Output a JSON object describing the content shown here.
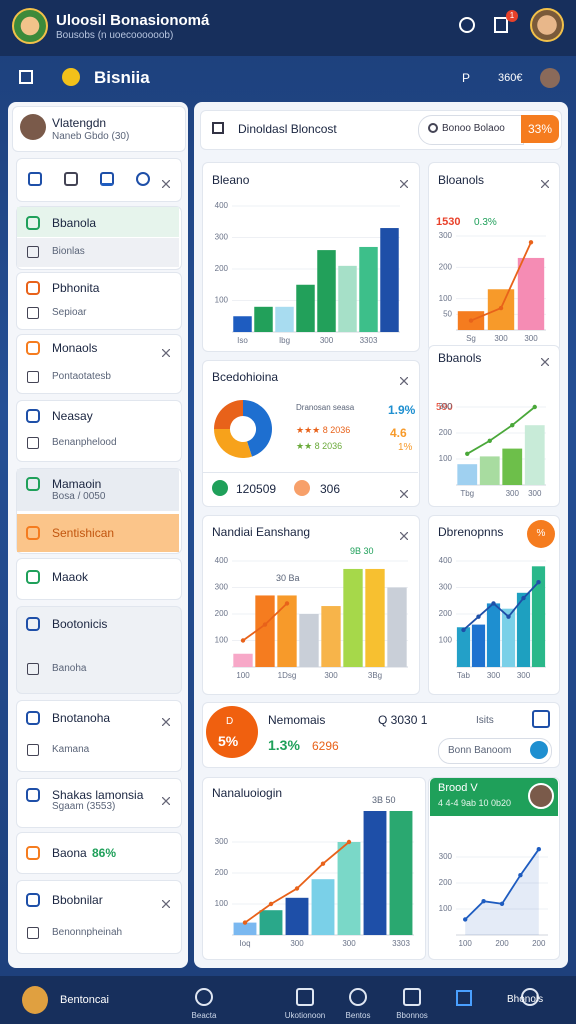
{
  "header": {
    "title": "Uloosil Bonasionomá",
    "subtitle": "Bousobs (n uoecoooooob)",
    "badge": "1"
  },
  "nav": {
    "title": "Bisniia",
    "price_label": "P",
    "price": "360€"
  },
  "profile": {
    "name": "Vlatengdn",
    "meta": "Naneb Gbdo (30)"
  },
  "sidebar": [
    {
      "title": "Bbanola",
      "subtitle": "Bionlas"
    },
    {
      "title": "Pbhonita",
      "subtitle": "Sepioar"
    },
    {
      "title": "Monaols",
      "subtitle": "Pontaotatesb"
    },
    {
      "title": "Neasay",
      "subtitle": "Benanphelood"
    },
    {
      "title": "Mamaoin",
      "subtitle": "Bosa / 0050"
    },
    {
      "title": "Sentishican"
    },
    {
      "title": "Maaok"
    },
    {
      "title": "Bootonicis",
      "subtitle": "Banoha"
    },
    {
      "title": "Bnotanoha",
      "subtitle": "Kamana"
    },
    {
      "title": "Shakas lamonsia",
      "subtitle": "Sgaam (3553)"
    },
    {
      "title": "Baona",
      "subtitle": "86%"
    },
    {
      "title": "Bbobnilar",
      "subtitle": "Benonnpheinah"
    }
  ],
  "search": {
    "title": "Dinoldasl Bloncost",
    "placeholder": "Bonoo Bolaoo",
    "button": "33%"
  },
  "cards": [
    {
      "title": "Bleano",
      "chart": {
        "type": "bar",
        "ylim": [
          0,
          400
        ],
        "yticks": [
          100,
          200,
          300,
          400
        ],
        "categories": [
          "Iso",
          null,
          "Ibg",
          null,
          "300",
          null,
          "3303",
          null
        ],
        "values": [
          50,
          80,
          80,
          150,
          260,
          210,
          270,
          330
        ],
        "colors": [
          "#1e5cc0",
          "#22a05a",
          "#a8dcf0",
          "#22a05a",
          "#22a05a",
          "#a6e0c8",
          "#3dbf8a",
          "#1e4fa8"
        ]
      }
    },
    {
      "title": "Bloanols",
      "value_text": "1530",
      "delta": "0.3%",
      "chart": {
        "type": "bar",
        "ylim": [
          0,
          300
        ],
        "yticks": [
          50,
          100,
          200,
          300
        ],
        "categories": [
          "Sg",
          "300",
          "300"
        ],
        "values": [
          60,
          130,
          230
        ],
        "colors": [
          "#f57c1f",
          "#f79a2a",
          "#f58cb4"
        ],
        "line": [
          30,
          70,
          280
        ],
        "line_color": "#e8621a"
      }
    },
    {
      "title": "Bcedohioina",
      "chart": {
        "type": "pie",
        "values": [
          45,
          30,
          25
        ],
        "colors": [
          "#1e6fd0",
          "#f7a21b",
          "#e8621a"
        ]
      },
      "legend": [
        {
          "text": "Dranosan seasa",
          "value": "1.9%"
        },
        {
          "text": "★★★ 8 2036",
          "value": "4.6"
        },
        {
          "text": "★★ 8 2036",
          "value": "1%"
        }
      ],
      "stat1": "120509",
      "stat2": "306"
    },
    {
      "title": "Bbanols",
      "value_text": "590",
      "chart": {
        "type": "bar",
        "ylim": [
          0,
          400
        ],
        "yticks": [
          100,
          200,
          300
        ],
        "categories": [
          "Tbg",
          null,
          "300",
          "300"
        ],
        "values": [
          80,
          110,
          140,
          230
        ],
        "colors": [
          "#9fd0f0",
          "#a8dca0",
          "#6dbf4a",
          "#c8ebd8"
        ],
        "line": [
          120,
          170,
          230,
          300
        ],
        "line_color": "#4aa83a"
      }
    },
    {
      "title": "Nandiai Eanshang",
      "annotations": [
        "30 Ba",
        "9B 30"
      ],
      "chart": {
        "type": "bar",
        "ylim": [
          0,
          400
        ],
        "yticks": [
          100,
          200,
          300,
          400
        ],
        "categories": [
          "100",
          null,
          "1Dsg",
          null,
          "300",
          null,
          "3Bg",
          null
        ],
        "values": [
          50,
          270,
          270,
          200,
          230,
          370,
          370,
          300
        ],
        "colors": [
          "#f7a8c8",
          "#f57c1f",
          "#f79a2a",
          "#c9cfd8",
          "#f7b44a",
          "#a6d84a",
          "#f7c030",
          "#c9cfd8"
        ],
        "line": [
          100,
          160,
          240,
          null,
          null,
          null,
          null,
          null
        ],
        "line_color": "#e8621a"
      }
    },
    {
      "title": "Dbrenopnns",
      "badge": "%",
      "chart": {
        "type": "bar",
        "ylim": [
          0,
          400
        ],
        "yticks": [
          100,
          200,
          300,
          400
        ],
        "categories": [
          "Tab",
          null,
          "300",
          null,
          "300",
          null
        ],
        "values": [
          150,
          160,
          240,
          220,
          280,
          380
        ],
        "colors": [
          "#23a0c8",
          "#1e72d0",
          "#1e8fd0",
          "#7ad0e8",
          "#1ea0c0",
          "#2ab88a"
        ],
        "line": [
          140,
          190,
          240,
          190,
          260,
          320
        ],
        "line_color": "#1e4fa8"
      }
    },
    {
      "title": "Nemomais",
      "circle": "5%",
      "circle_top": "D",
      "delta": "1.3%",
      "value": "6296",
      "code": "Q 3030 1",
      "tab": "Isits",
      "placeholder": "Bonn Banoom"
    },
    {
      "title": "Nanaluoiogin",
      "annotation": "3B 50",
      "chart": {
        "type": "bar",
        "ylim": [
          0,
          400
        ],
        "yticks": [
          100,
          200,
          300
        ],
        "categories": [
          "Ioq",
          null,
          "300",
          null,
          "300",
          null,
          "3303"
        ],
        "values": [
          40,
          80,
          120,
          180,
          300,
          400,
          400
        ],
        "colors": [
          "#7ab8f0",
          "#2aa88a",
          "#1e4fa8",
          "#7ad0e8",
          "#7ad8c8",
          "#1e4fa8",
          "#2aa870"
        ],
        "line": [
          40,
          100,
          150,
          230,
          300,
          null,
          null
        ],
        "line_color": "#e8621a"
      }
    },
    {
      "title": "Brood V",
      "subtitle": "4 4-4 9ab 10 0b20",
      "chart": {
        "type": "line",
        "ylim": [
          0,
          400
        ],
        "yticks": [
          100,
          200,
          300
        ],
        "categories": [
          "100",
          null,
          "200",
          null,
          "200"
        ],
        "values": [
          60,
          130,
          120,
          230,
          330
        ],
        "color": "#1e5cc0"
      }
    }
  ],
  "bottom_nav": [
    "Bentoncai",
    "Beacta",
    "Ukotionoon",
    "Bentos",
    "Bbonnos",
    "Bhonols"
  ]
}
